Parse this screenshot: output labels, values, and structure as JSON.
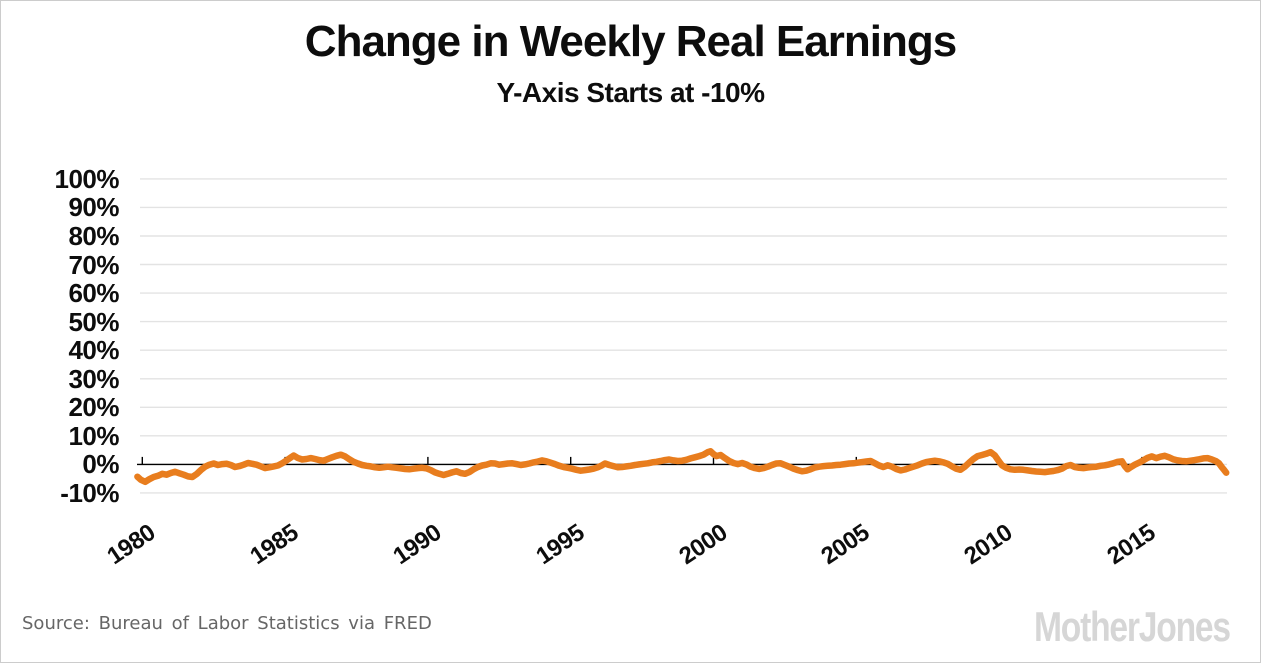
{
  "page": {
    "title": "Change in Weekly Real Earnings",
    "subtitle": "Y-Axis Starts at -10%",
    "source": "Source: Bureau of Labor Statistics via FRED",
    "brand": "MotherJones"
  },
  "colors": {
    "line": "#e87d1e",
    "grid": "#e3e3e3",
    "axis": "#000000",
    "title_text": "#0d0d0d",
    "source_text": "#666666",
    "brand_text": "#d6d6d6",
    "border": "#cccccc",
    "background": "#ffffff"
  },
  "chart_data": {
    "type": "line",
    "title": "Change in Weekly Real Earnings",
    "subtitle": "Y-Axis Starts at -10%",
    "xlabel": "",
    "ylabel": "",
    "ylim": [
      -10,
      100
    ],
    "x_range": [
      1979.8,
      2018.0
    ],
    "grid": "horizontal-only",
    "legend_position": "none",
    "y_ticks": [
      {
        "value": 100,
        "label": "100%"
      },
      {
        "value": 90,
        "label": "90%"
      },
      {
        "value": 80,
        "label": "80%"
      },
      {
        "value": 70,
        "label": "70%"
      },
      {
        "value": 60,
        "label": "60%"
      },
      {
        "value": 50,
        "label": "50%"
      },
      {
        "value": 40,
        "label": "40%"
      },
      {
        "value": 30,
        "label": "30%"
      },
      {
        "value": 20,
        "label": "20%"
      },
      {
        "value": 10,
        "label": "10%"
      },
      {
        "value": 0,
        "label": "0%"
      },
      {
        "value": -10,
        "label": "-10%"
      }
    ],
    "x_ticks": [
      {
        "year": 1980,
        "label": "1980"
      },
      {
        "year": 1985,
        "label": "1985"
      },
      {
        "year": 1990,
        "label": "1990"
      },
      {
        "year": 1995,
        "label": "1995"
      },
      {
        "year": 2000,
        "label": "2000"
      },
      {
        "year": 2005,
        "label": "2005"
      },
      {
        "year": 2010,
        "label": "2010"
      },
      {
        "year": 2015,
        "label": "2015"
      }
    ],
    "series": [
      {
        "name": "Change in weekly real earnings (%)",
        "points": [
          [
            1979.83,
            -4.3
          ],
          [
            1979.95,
            -5.4
          ],
          [
            1980.1,
            -6.1
          ],
          [
            1980.25,
            -5.2
          ],
          [
            1980.4,
            -4.4
          ],
          [
            1980.55,
            -4.0
          ],
          [
            1980.7,
            -3.3
          ],
          [
            1980.85,
            -3.6
          ],
          [
            1981.0,
            -3.0
          ],
          [
            1981.15,
            -2.6
          ],
          [
            1981.3,
            -3.1
          ],
          [
            1981.45,
            -3.6
          ],
          [
            1981.6,
            -4.2
          ],
          [
            1981.75,
            -4.4
          ],
          [
            1981.9,
            -3.4
          ],
          [
            1982.05,
            -2.0
          ],
          [
            1982.2,
            -0.8
          ],
          [
            1982.35,
            -0.1
          ],
          [
            1982.5,
            0.3
          ],
          [
            1982.65,
            -0.2
          ],
          [
            1982.8,
            0.1
          ],
          [
            1982.95,
            0.2
          ],
          [
            1983.1,
            -0.2
          ],
          [
            1983.25,
            -0.9
          ],
          [
            1983.4,
            -0.6
          ],
          [
            1983.55,
            -0.1
          ],
          [
            1983.7,
            0.5
          ],
          [
            1983.85,
            0.2
          ],
          [
            1984.0,
            -0.1
          ],
          [
            1984.15,
            -0.7
          ],
          [
            1984.3,
            -1.3
          ],
          [
            1984.45,
            -1.0
          ],
          [
            1984.6,
            -0.7
          ],
          [
            1984.75,
            -0.4
          ],
          [
            1984.9,
            0.4
          ],
          [
            1985.05,
            1.4
          ],
          [
            1985.2,
            2.4
          ],
          [
            1985.3,
            3.1
          ],
          [
            1985.45,
            2.2
          ],
          [
            1985.6,
            1.7
          ],
          [
            1985.75,
            1.9
          ],
          [
            1985.9,
            2.2
          ],
          [
            1986.05,
            1.9
          ],
          [
            1986.2,
            1.5
          ],
          [
            1986.35,
            1.3
          ],
          [
            1986.5,
            1.9
          ],
          [
            1986.65,
            2.5
          ],
          [
            1986.8,
            3.0
          ],
          [
            1986.95,
            3.4
          ],
          [
            1987.1,
            2.8
          ],
          [
            1987.25,
            1.8
          ],
          [
            1987.4,
            0.9
          ],
          [
            1987.55,
            0.3
          ],
          [
            1987.7,
            -0.2
          ],
          [
            1987.85,
            -0.5
          ],
          [
            1988.0,
            -0.7
          ],
          [
            1988.15,
            -1.0
          ],
          [
            1988.3,
            -1.2
          ],
          [
            1988.45,
            -1.0
          ],
          [
            1988.6,
            -0.8
          ],
          [
            1988.75,
            -1.0
          ],
          [
            1988.9,
            -1.2
          ],
          [
            1989.05,
            -1.4
          ],
          [
            1989.2,
            -1.6
          ],
          [
            1989.35,
            -1.7
          ],
          [
            1989.5,
            -1.5
          ],
          [
            1989.65,
            -1.3
          ],
          [
            1989.8,
            -1.2
          ],
          [
            1989.95,
            -1.4
          ],
          [
            1990.1,
            -2.0
          ],
          [
            1990.25,
            -2.8
          ],
          [
            1990.4,
            -3.3
          ],
          [
            1990.55,
            -3.7
          ],
          [
            1990.7,
            -3.3
          ],
          [
            1990.85,
            -2.8
          ],
          [
            1991.0,
            -2.4
          ],
          [
            1991.15,
            -3.0
          ],
          [
            1991.3,
            -3.3
          ],
          [
            1991.45,
            -2.7
          ],
          [
            1991.6,
            -1.7
          ],
          [
            1991.75,
            -0.9
          ],
          [
            1991.9,
            -0.4
          ],
          [
            1992.05,
            -0.1
          ],
          [
            1992.2,
            0.4
          ],
          [
            1992.35,
            0.3
          ],
          [
            1992.5,
            -0.1
          ],
          [
            1992.65,
            0.1
          ],
          [
            1992.8,
            0.3
          ],
          [
            1992.95,
            0.4
          ],
          [
            1993.1,
            0.1
          ],
          [
            1993.25,
            -0.2
          ],
          [
            1993.4,
            0.0
          ],
          [
            1993.55,
            0.3
          ],
          [
            1993.7,
            0.7
          ],
          [
            1993.85,
            1.0
          ],
          [
            1994.0,
            1.4
          ],
          [
            1994.15,
            1.1
          ],
          [
            1994.3,
            0.6
          ],
          [
            1994.45,
            0.1
          ],
          [
            1994.6,
            -0.5
          ],
          [
            1994.75,
            -0.9
          ],
          [
            1994.9,
            -1.2
          ],
          [
            1995.05,
            -1.5
          ],
          [
            1995.2,
            -1.9
          ],
          [
            1995.35,
            -2.2
          ],
          [
            1995.5,
            -2.0
          ],
          [
            1995.65,
            -1.8
          ],
          [
            1995.8,
            -1.5
          ],
          [
            1995.95,
            -1.0
          ],
          [
            1996.1,
            -0.3
          ],
          [
            1996.2,
            0.3
          ],
          [
            1996.35,
            -0.2
          ],
          [
            1996.5,
            -0.6
          ],
          [
            1996.65,
            -1.0
          ],
          [
            1996.8,
            -0.9
          ],
          [
            1996.95,
            -0.7
          ],
          [
            1997.1,
            -0.5
          ],
          [
            1997.25,
            -0.2
          ],
          [
            1997.4,
            0.0
          ],
          [
            1997.55,
            0.2
          ],
          [
            1997.7,
            0.4
          ],
          [
            1997.85,
            0.7
          ],
          [
            1998.0,
            0.9
          ],
          [
            1998.15,
            1.2
          ],
          [
            1998.3,
            1.5
          ],
          [
            1998.45,
            1.7
          ],
          [
            1998.6,
            1.4
          ],
          [
            1998.75,
            1.2
          ],
          [
            1998.9,
            1.3
          ],
          [
            1999.05,
            1.6
          ],
          [
            1999.2,
            2.1
          ],
          [
            1999.35,
            2.5
          ],
          [
            1999.5,
            2.9
          ],
          [
            1999.65,
            3.4
          ],
          [
            1999.8,
            4.3
          ],
          [
            1999.9,
            4.6
          ],
          [
            2000.0,
            3.6
          ],
          [
            2000.1,
            2.9
          ],
          [
            2000.25,
            3.3
          ],
          [
            2000.4,
            2.2
          ],
          [
            2000.55,
            1.2
          ],
          [
            2000.7,
            0.5
          ],
          [
            2000.85,
            0.1
          ],
          [
            2001.0,
            0.5
          ],
          [
            2001.15,
            0.0
          ],
          [
            2001.3,
            -0.8
          ],
          [
            2001.45,
            -1.3
          ],
          [
            2001.6,
            -1.6
          ],
          [
            2001.75,
            -1.3
          ],
          [
            2001.9,
            -0.8
          ],
          [
            2002.05,
            -0.2
          ],
          [
            2002.2,
            0.3
          ],
          [
            2002.35,
            0.4
          ],
          [
            2002.5,
            -0.2
          ],
          [
            2002.65,
            -0.8
          ],
          [
            2002.8,
            -1.5
          ],
          [
            2002.95,
            -2.0
          ],
          [
            2003.1,
            -2.4
          ],
          [
            2003.25,
            -2.2
          ],
          [
            2003.4,
            -1.7
          ],
          [
            2003.55,
            -1.1
          ],
          [
            2003.7,
            -0.8
          ],
          [
            2003.85,
            -0.6
          ],
          [
            2004.0,
            -0.5
          ],
          [
            2004.15,
            -0.4
          ],
          [
            2004.3,
            -0.2
          ],
          [
            2004.45,
            -0.1
          ],
          [
            2004.6,
            0.1
          ],
          [
            2004.75,
            0.3
          ],
          [
            2004.9,
            0.4
          ],
          [
            2005.05,
            0.6
          ],
          [
            2005.2,
            0.8
          ],
          [
            2005.35,
            1.0
          ],
          [
            2005.5,
            1.2
          ],
          [
            2005.65,
            0.4
          ],
          [
            2005.8,
            -0.4
          ],
          [
            2005.95,
            -0.9
          ],
          [
            2006.1,
            -0.3
          ],
          [
            2006.25,
            -0.8
          ],
          [
            2006.4,
            -1.6
          ],
          [
            2006.55,
            -2.1
          ],
          [
            2006.7,
            -1.8
          ],
          [
            2006.85,
            -1.3
          ],
          [
            2007.0,
            -0.8
          ],
          [
            2007.15,
            -0.3
          ],
          [
            2007.3,
            0.3
          ],
          [
            2007.45,
            0.8
          ],
          [
            2007.6,
            1.1
          ],
          [
            2007.75,
            1.3
          ],
          [
            2007.9,
            1.1
          ],
          [
            2008.05,
            0.7
          ],
          [
            2008.2,
            0.2
          ],
          [
            2008.35,
            -0.7
          ],
          [
            2008.5,
            -1.5
          ],
          [
            2008.65,
            -1.9
          ],
          [
            2008.8,
            -0.8
          ],
          [
            2008.95,
            0.6
          ],
          [
            2009.1,
            1.9
          ],
          [
            2009.25,
            2.9
          ],
          [
            2009.4,
            3.3
          ],
          [
            2009.55,
            3.7
          ],
          [
            2009.7,
            4.3
          ],
          [
            2009.85,
            3.2
          ],
          [
            2010.0,
            1.0
          ],
          [
            2010.1,
            -0.3
          ],
          [
            2010.25,
            -1.2
          ],
          [
            2010.4,
            -1.7
          ],
          [
            2010.55,
            -1.9
          ],
          [
            2010.7,
            -1.8
          ],
          [
            2010.85,
            -1.9
          ],
          [
            2011.0,
            -2.1
          ],
          [
            2011.15,
            -2.3
          ],
          [
            2011.3,
            -2.5
          ],
          [
            2011.45,
            -2.6
          ],
          [
            2011.6,
            -2.7
          ],
          [
            2011.75,
            -2.5
          ],
          [
            2011.9,
            -2.3
          ],
          [
            2012.05,
            -2.0
          ],
          [
            2012.2,
            -1.5
          ],
          [
            2012.35,
            -0.6
          ],
          [
            2012.5,
            -0.2
          ],
          [
            2012.65,
            -0.9
          ],
          [
            2012.8,
            -1.2
          ],
          [
            2012.95,
            -1.3
          ],
          [
            2013.1,
            -1.1
          ],
          [
            2013.25,
            -0.9
          ],
          [
            2013.4,
            -0.8
          ],
          [
            2013.55,
            -0.5
          ],
          [
            2013.7,
            -0.3
          ],
          [
            2013.85,
            0.0
          ],
          [
            2014.0,
            0.4
          ],
          [
            2014.15,
            0.9
          ],
          [
            2014.3,
            1.1
          ],
          [
            2014.4,
            -0.6
          ],
          [
            2014.5,
            -1.7
          ],
          [
            2014.6,
            -1.0
          ],
          [
            2014.75,
            -0.1
          ],
          [
            2014.9,
            0.6
          ],
          [
            2015.05,
            1.4
          ],
          [
            2015.2,
            2.3
          ],
          [
            2015.35,
            2.8
          ],
          [
            2015.5,
            2.2
          ],
          [
            2015.65,
            2.7
          ],
          [
            2015.8,
            3.0
          ],
          [
            2015.95,
            2.5
          ],
          [
            2016.1,
            1.8
          ],
          [
            2016.25,
            1.4
          ],
          [
            2016.4,
            1.2
          ],
          [
            2016.55,
            1.1
          ],
          [
            2016.7,
            1.3
          ],
          [
            2016.85,
            1.5
          ],
          [
            2017.0,
            1.8
          ],
          [
            2017.15,
            2.1
          ],
          [
            2017.3,
            2.2
          ],
          [
            2017.45,
            1.7
          ],
          [
            2017.6,
            1.1
          ],
          [
            2017.7,
            0.4
          ],
          [
            2017.8,
            -1.0
          ],
          [
            2017.88,
            -2.0
          ],
          [
            2017.95,
            -2.9
          ]
        ]
      }
    ]
  }
}
